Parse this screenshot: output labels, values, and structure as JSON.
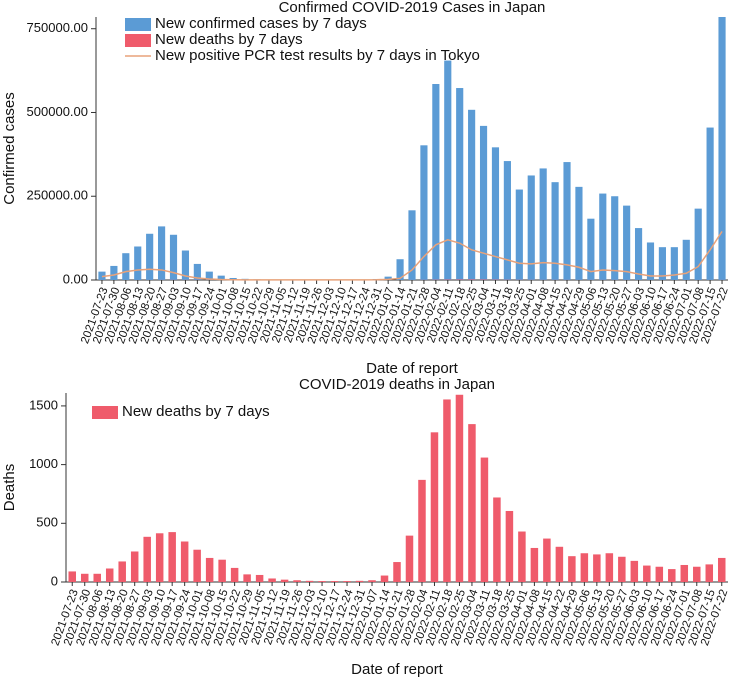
{
  "chart_data": [
    {
      "type": "bar",
      "title": "Confirmed COVID-2019 Cases in Japan",
      "xlabel": "Date of report",
      "ylabel": "Confirmed cases",
      "categories": [
        "2021-07-23",
        "2021-07-30",
        "2021-08-06",
        "2021-08-13",
        "2021-08-20",
        "2021-08-27",
        "2021-09-03",
        "2021-09-10",
        "2021-09-17",
        "2021-09-24",
        "2021-10-01",
        "2021-10-08",
        "2021-10-15",
        "2021-10-22",
        "2021-10-29",
        "2021-11-05",
        "2021-11-12",
        "2021-11-19",
        "2021-11-26",
        "2021-12-03",
        "2021-12-10",
        "2021-12-17",
        "2021-12-24",
        "2021-12-31",
        "2022-01-07",
        "2022-01-14",
        "2022-01-21",
        "2022-01-28",
        "2022-02-04",
        "2022-02-11",
        "2022-02-18",
        "2022-02-25",
        "2022-03-04",
        "2022-03-11",
        "2022-03-18",
        "2022-03-25",
        "2022-04-01",
        "2022-04-08",
        "2022-04-15",
        "2022-04-22",
        "2022-04-29",
        "2022-05-06",
        "2022-05-13",
        "2022-05-20",
        "2022-05-27",
        "2022-06-03",
        "2022-06-10",
        "2022-06-17",
        "2022-06-24",
        "2022-07-01",
        "2022-07-08",
        "2022-07-15",
        "2022-07-22"
      ],
      "series": [
        {
          "name": "New confirmed cases by 7 days",
          "type": "bar",
          "color": "#5b9bd5",
          "values": [
            25000,
            42000,
            80000,
            100000,
            138000,
            160000,
            135000,
            88000,
            48000,
            25000,
            13000,
            6000,
            3500,
            2000,
            1500,
            1200,
            1000,
            900,
            800,
            900,
            1000,
            1200,
            1500,
            3000,
            10000,
            62000,
            208000,
            402000,
            585000,
            655000,
            573000,
            508000,
            460000,
            396000,
            355000,
            270000,
            312000,
            333000,
            292000,
            352000,
            278000,
            183000,
            258000,
            250000,
            222000,
            155000,
            112000,
            98000,
            98000,
            120000,
            213000,
            455000,
            785000
          ]
        },
        {
          "name": "New deaths by 7 days",
          "type": "bar",
          "color": "#ef5b6b",
          "values": [
            90,
            70,
            70,
            115,
            175,
            260,
            385,
            415,
            425,
            345,
            275,
            205,
            190,
            120,
            65,
            60,
            30,
            20,
            15,
            10,
            8,
            8,
            8,
            10,
            15,
            55,
            170,
            395,
            870,
            1275,
            1555,
            1595,
            1345,
            1060,
            720,
            605,
            430,
            290,
            370,
            300,
            220,
            245,
            235,
            245,
            215,
            180,
            140,
            130,
            110,
            145,
            130,
            150,
            205
          ]
        },
        {
          "name": "New positive PCR test results by 7 days in Tokyo",
          "type": "line",
          "color": "#e8a27a",
          "values": [
            10000,
            15000,
            25000,
            30000,
            32000,
            30000,
            22000,
            12000,
            6000,
            3000,
            1500,
            800,
            500,
            400,
            300,
            300,
            300,
            300,
            300,
            300,
            300,
            400,
            500,
            800,
            2000,
            5000,
            30000,
            70000,
            105000,
            120000,
            110000,
            90000,
            80000,
            70000,
            60000,
            50000,
            48000,
            52000,
            50000,
            45000,
            38000,
            25000,
            30000,
            28000,
            25000,
            18000,
            12000,
            12000,
            15000,
            20000,
            40000,
            90000,
            145000
          ]
        }
      ],
      "ylim": [
        0,
        785000
      ],
      "yticks": [
        {
          "value": 0,
          "label": "0.00"
        },
        {
          "value": 250000,
          "label": "250000.00"
        },
        {
          "value": 500000,
          "label": "500000.00"
        },
        {
          "value": 750000,
          "label": "750000.00"
        }
      ],
      "legend": "upper left"
    },
    {
      "type": "bar",
      "title": "COVID-2019 deaths in Japan",
      "xlabel": "Date of report",
      "ylabel": "Deaths",
      "categories": [
        "2021-07-23",
        "2021-07-30",
        "2021-08-06",
        "2021-08-13",
        "2021-08-20",
        "2021-08-27",
        "2021-09-03",
        "2021-09-10",
        "2021-09-17",
        "2021-09-24",
        "2021-10-01",
        "2021-10-08",
        "2021-10-15",
        "2021-10-22",
        "2021-10-29",
        "2021-11-05",
        "2021-11-12",
        "2021-11-19",
        "2021-11-26",
        "2021-12-03",
        "2021-12-10",
        "2021-12-17",
        "2021-12-24",
        "2021-12-31",
        "2022-01-07",
        "2022-01-14",
        "2022-01-21",
        "2022-01-28",
        "2022-02-04",
        "2022-02-11",
        "2022-02-18",
        "2022-02-25",
        "2022-03-04",
        "2022-03-11",
        "2022-03-18",
        "2022-03-25",
        "2022-04-01",
        "2022-04-08",
        "2022-04-15",
        "2022-04-22",
        "2022-04-29",
        "2022-05-06",
        "2022-05-13",
        "2022-05-20",
        "2022-05-27",
        "2022-06-03",
        "2022-06-10",
        "2022-06-17",
        "2022-06-24",
        "2022-07-01",
        "2022-07-08",
        "2022-07-15",
        "2022-07-22"
      ],
      "series": [
        {
          "name": "New deaths by 7 days",
          "type": "bar",
          "color": "#ef5b6b",
          "values": [
            90,
            70,
            70,
            115,
            175,
            260,
            385,
            415,
            425,
            345,
            275,
            205,
            190,
            120,
            65,
            60,
            30,
            20,
            15,
            10,
            8,
            8,
            8,
            10,
            15,
            55,
            170,
            395,
            870,
            1275,
            1555,
            1595,
            1345,
            1060,
            720,
            605,
            430,
            290,
            370,
            300,
            220,
            245,
            235,
            245,
            215,
            180,
            140,
            130,
            110,
            145,
            130,
            150,
            205
          ]
        }
      ],
      "ylim": [
        0,
        1610
      ],
      "yticks": [
        0,
        500,
        1000,
        1500
      ],
      "legend": "upper left"
    }
  ]
}
